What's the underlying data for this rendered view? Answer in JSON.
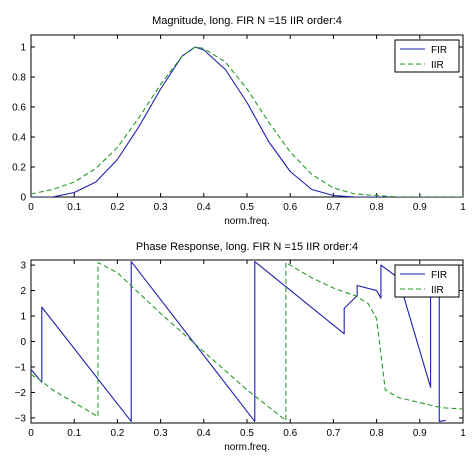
{
  "chart_data": [
    {
      "type": "line",
      "title": "Magnitude, long. FIR N =15 IIR order:4",
      "xlabel": "norm.freq.",
      "ylabel": "",
      "xlim": [
        0,
        1
      ],
      "ylim": [
        0,
        1.08
      ],
      "xticks": [
        0,
        0.1,
        0.2,
        0.3,
        0.4,
        0.5,
        0.6,
        0.7,
        0.8,
        0.9,
        1
      ],
      "xtick_labels": [
        "0",
        "0.1",
        "0.2",
        "0.3",
        "0.4",
        "0.5",
        "0.6",
        "0.7",
        "0.8",
        "0.9",
        "1"
      ],
      "yticks": [
        0,
        0.2,
        0.4,
        0.6,
        0.8,
        1
      ],
      "ytick_labels": [
        "0",
        "0.2",
        "0.4",
        "0.6",
        "0.8",
        "1"
      ],
      "grid": false,
      "legend": "top-right",
      "series": [
        {
          "name": "FIR",
          "color": "#1f1fb0",
          "style": "solid",
          "x": [
            0,
            0.05,
            0.1,
            0.15,
            0.2,
            0.25,
            0.3,
            0.35,
            0.38,
            0.4,
            0.45,
            0.5,
            0.55,
            0.6,
            0.65,
            0.7,
            0.75,
            0.8,
            0.85,
            0.9,
            1
          ],
          "y": [
            0.0,
            0.0,
            0.03,
            0.1,
            0.25,
            0.47,
            0.72,
            0.94,
            1.0,
            0.98,
            0.85,
            0.63,
            0.37,
            0.17,
            0.05,
            0.01,
            0.0,
            0.0,
            0.0,
            0.0,
            0.0
          ]
        },
        {
          "name": "IIR",
          "color": "#2a9a2a",
          "style": "dashed",
          "x": [
            0,
            0.05,
            0.1,
            0.15,
            0.2,
            0.25,
            0.3,
            0.35,
            0.38,
            0.4,
            0.45,
            0.5,
            0.55,
            0.6,
            0.65,
            0.7,
            0.75,
            0.8,
            0.85,
            0.9,
            1
          ],
          "y": [
            0.02,
            0.05,
            0.1,
            0.19,
            0.33,
            0.53,
            0.75,
            0.94,
            1.0,
            0.99,
            0.9,
            0.72,
            0.5,
            0.3,
            0.15,
            0.06,
            0.02,
            0.01,
            0.0,
            0.0,
            0.0
          ]
        }
      ]
    },
    {
      "type": "line",
      "title": "Phase Response, long. FIR N =15 IIR order:4",
      "xlabel": "norm.freq.",
      "ylabel": "",
      "xlim": [
        0,
        1
      ],
      "ylim": [
        -3.2,
        3.2
      ],
      "xticks": [
        0,
        0.1,
        0.2,
        0.3,
        0.4,
        0.5,
        0.6,
        0.7,
        0.8,
        0.9,
        1
      ],
      "xtick_labels": [
        "0",
        "0.1",
        "0.2",
        "0.3",
        "0.4",
        "0.5",
        "0.6",
        "0.7",
        "0.8",
        "0.9",
        "1"
      ],
      "yticks": [
        -3,
        -2,
        -1,
        0,
        1,
        2,
        3
      ],
      "ytick_labels": [
        "−3",
        "−2",
        "−1",
        "0",
        "1",
        "2",
        "3"
      ],
      "grid": false,
      "legend": "top-right",
      "series": [
        {
          "name": "FIR",
          "color": "#1f1fb0",
          "style": "solid",
          "x": [
            0,
            0.025,
            0.025,
            0.232,
            0.232,
            0.518,
            0.518,
            0.725,
            0.725,
            0.755,
            0.755,
            0.8,
            0.81,
            0.81,
            0.85,
            0.85,
            0.925,
            0.925,
            0.945,
            0.945,
            0.96
          ],
          "y": [
            -1.1,
            -1.6,
            1.35,
            -3.14,
            3.14,
            -3.14,
            3.14,
            0.3,
            1.3,
            1.8,
            2.2,
            2.0,
            1.7,
            3.0,
            2.5,
            2.5,
            -1.8,
            2.3,
            2.0,
            -3.14,
            -3.1
          ]
        },
        {
          "name": "IIR",
          "color": "#2a9a2a",
          "style": "dashed",
          "x": [
            0,
            0.02,
            0.05,
            0.1,
            0.155,
            0.155,
            0.2,
            0.3,
            0.4,
            0.5,
            0.59,
            0.59,
            0.65,
            0.7,
            0.75,
            0.78,
            0.8,
            0.82,
            0.85,
            0.9,
            0.95,
            1
          ],
          "y": [
            -1.3,
            -1.5,
            -1.9,
            -2.4,
            -2.95,
            3.1,
            2.7,
            1.1,
            -0.4,
            -1.9,
            -3.1,
            3.1,
            2.5,
            2.1,
            1.8,
            1.5,
            0.9,
            -1.9,
            -2.2,
            -2.4,
            -2.6,
            -2.65
          ]
        }
      ]
    }
  ]
}
